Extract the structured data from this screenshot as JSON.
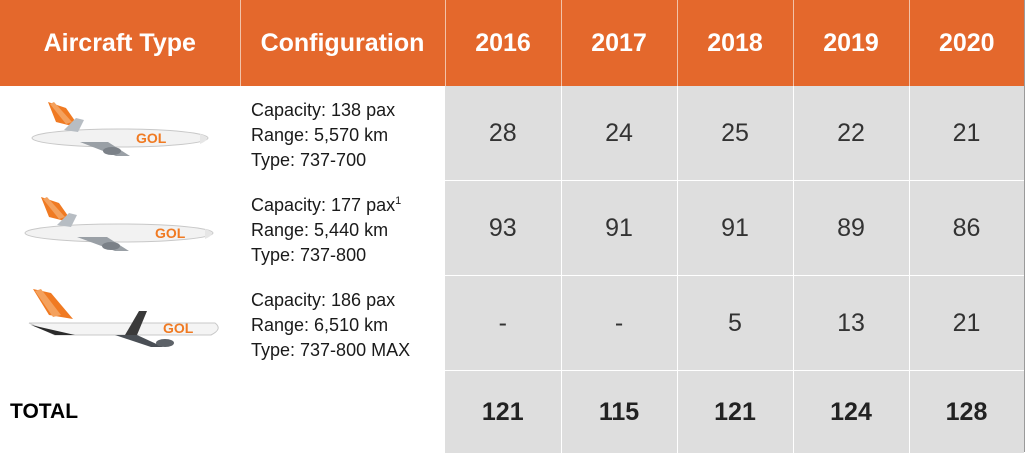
{
  "headers": [
    "Aircraft Type",
    "Configuration",
    "2016",
    "2017",
    "2018",
    "2019",
    "2020"
  ],
  "rows": [
    {
      "image": "gol-737-700-plane",
      "capacity": "Capacity: 138 pax",
      "capacity_note": "",
      "range": "Range: 5,570 km",
      "type": "Type: 737-700",
      "values": [
        "28",
        "24",
        "25",
        "22",
        "21"
      ]
    },
    {
      "image": "gol-737-800-plane",
      "capacity": "Capacity: 177 pax",
      "capacity_note": "1",
      "range": "Range: 5,440 km",
      "type": "Type: 737-800",
      "values": [
        "93",
        "91",
        "91",
        "89",
        "86"
      ]
    },
    {
      "image": "gol-737-800-max-plane",
      "capacity": "Capacity: 186 pax",
      "capacity_note": "",
      "range": "Range: 6,510 km",
      "type": "Type: 737-800 MAX",
      "values": [
        "-",
        "-",
        "5",
        "13",
        "21"
      ]
    }
  ],
  "total": {
    "label": "TOTAL",
    "values": [
      "121",
      "115",
      "121",
      "124",
      "128"
    ]
  },
  "colors": {
    "header_bg": "#e4682c",
    "cell_bg": "#dedede",
    "brand_orange": "#f07a22"
  }
}
